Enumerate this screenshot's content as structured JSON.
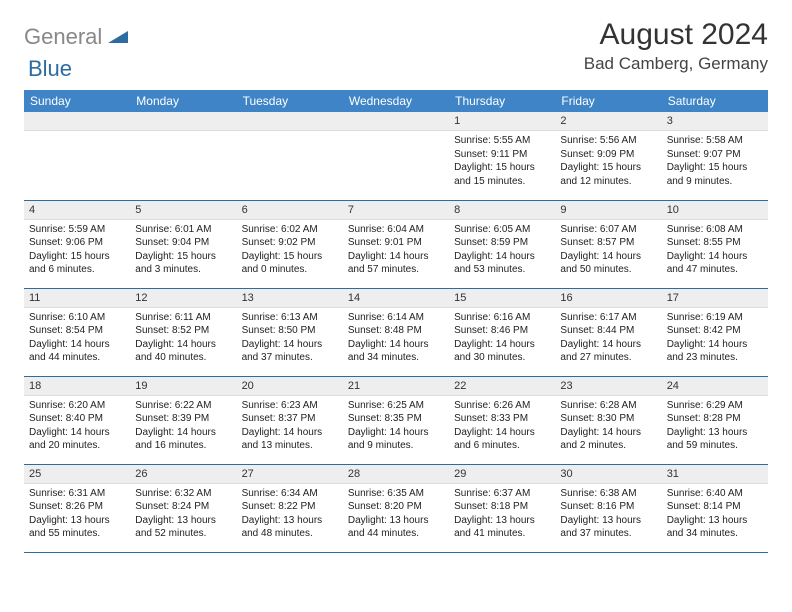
{
  "logo": {
    "gray": "General",
    "blue": "Blue"
  },
  "title": "August 2024",
  "location": "Bad Camberg, Germany",
  "colors": {
    "header_bg": "#3e84c6",
    "header_text": "#ffffff",
    "row_border": "#2d6ca2",
    "daynum_bg": "#eeeeee",
    "logo_gray": "#888888",
    "logo_blue": "#2d6ca2"
  },
  "weekdays": [
    "Sunday",
    "Monday",
    "Tuesday",
    "Wednesday",
    "Thursday",
    "Friday",
    "Saturday"
  ],
  "weeks": [
    [
      null,
      null,
      null,
      null,
      {
        "n": "1",
        "sr": "Sunrise: 5:55 AM",
        "ss": "Sunset: 9:11 PM",
        "d1": "Daylight: 15 hours",
        "d2": "and 15 minutes."
      },
      {
        "n": "2",
        "sr": "Sunrise: 5:56 AM",
        "ss": "Sunset: 9:09 PM",
        "d1": "Daylight: 15 hours",
        "d2": "and 12 minutes."
      },
      {
        "n": "3",
        "sr": "Sunrise: 5:58 AM",
        "ss": "Sunset: 9:07 PM",
        "d1": "Daylight: 15 hours",
        "d2": "and 9 minutes."
      }
    ],
    [
      {
        "n": "4",
        "sr": "Sunrise: 5:59 AM",
        "ss": "Sunset: 9:06 PM",
        "d1": "Daylight: 15 hours",
        "d2": "and 6 minutes."
      },
      {
        "n": "5",
        "sr": "Sunrise: 6:01 AM",
        "ss": "Sunset: 9:04 PM",
        "d1": "Daylight: 15 hours",
        "d2": "and 3 minutes."
      },
      {
        "n": "6",
        "sr": "Sunrise: 6:02 AM",
        "ss": "Sunset: 9:02 PM",
        "d1": "Daylight: 15 hours",
        "d2": "and 0 minutes."
      },
      {
        "n": "7",
        "sr": "Sunrise: 6:04 AM",
        "ss": "Sunset: 9:01 PM",
        "d1": "Daylight: 14 hours",
        "d2": "and 57 minutes."
      },
      {
        "n": "8",
        "sr": "Sunrise: 6:05 AM",
        "ss": "Sunset: 8:59 PM",
        "d1": "Daylight: 14 hours",
        "d2": "and 53 minutes."
      },
      {
        "n": "9",
        "sr": "Sunrise: 6:07 AM",
        "ss": "Sunset: 8:57 PM",
        "d1": "Daylight: 14 hours",
        "d2": "and 50 minutes."
      },
      {
        "n": "10",
        "sr": "Sunrise: 6:08 AM",
        "ss": "Sunset: 8:55 PM",
        "d1": "Daylight: 14 hours",
        "d2": "and 47 minutes."
      }
    ],
    [
      {
        "n": "11",
        "sr": "Sunrise: 6:10 AM",
        "ss": "Sunset: 8:54 PM",
        "d1": "Daylight: 14 hours",
        "d2": "and 44 minutes."
      },
      {
        "n": "12",
        "sr": "Sunrise: 6:11 AM",
        "ss": "Sunset: 8:52 PM",
        "d1": "Daylight: 14 hours",
        "d2": "and 40 minutes."
      },
      {
        "n": "13",
        "sr": "Sunrise: 6:13 AM",
        "ss": "Sunset: 8:50 PM",
        "d1": "Daylight: 14 hours",
        "d2": "and 37 minutes."
      },
      {
        "n": "14",
        "sr": "Sunrise: 6:14 AM",
        "ss": "Sunset: 8:48 PM",
        "d1": "Daylight: 14 hours",
        "d2": "and 34 minutes."
      },
      {
        "n": "15",
        "sr": "Sunrise: 6:16 AM",
        "ss": "Sunset: 8:46 PM",
        "d1": "Daylight: 14 hours",
        "d2": "and 30 minutes."
      },
      {
        "n": "16",
        "sr": "Sunrise: 6:17 AM",
        "ss": "Sunset: 8:44 PM",
        "d1": "Daylight: 14 hours",
        "d2": "and 27 minutes."
      },
      {
        "n": "17",
        "sr": "Sunrise: 6:19 AM",
        "ss": "Sunset: 8:42 PM",
        "d1": "Daylight: 14 hours",
        "d2": "and 23 minutes."
      }
    ],
    [
      {
        "n": "18",
        "sr": "Sunrise: 6:20 AM",
        "ss": "Sunset: 8:40 PM",
        "d1": "Daylight: 14 hours",
        "d2": "and 20 minutes."
      },
      {
        "n": "19",
        "sr": "Sunrise: 6:22 AM",
        "ss": "Sunset: 8:39 PM",
        "d1": "Daylight: 14 hours",
        "d2": "and 16 minutes."
      },
      {
        "n": "20",
        "sr": "Sunrise: 6:23 AM",
        "ss": "Sunset: 8:37 PM",
        "d1": "Daylight: 14 hours",
        "d2": "and 13 minutes."
      },
      {
        "n": "21",
        "sr": "Sunrise: 6:25 AM",
        "ss": "Sunset: 8:35 PM",
        "d1": "Daylight: 14 hours",
        "d2": "and 9 minutes."
      },
      {
        "n": "22",
        "sr": "Sunrise: 6:26 AM",
        "ss": "Sunset: 8:33 PM",
        "d1": "Daylight: 14 hours",
        "d2": "and 6 minutes."
      },
      {
        "n": "23",
        "sr": "Sunrise: 6:28 AM",
        "ss": "Sunset: 8:30 PM",
        "d1": "Daylight: 14 hours",
        "d2": "and 2 minutes."
      },
      {
        "n": "24",
        "sr": "Sunrise: 6:29 AM",
        "ss": "Sunset: 8:28 PM",
        "d1": "Daylight: 13 hours",
        "d2": "and 59 minutes."
      }
    ],
    [
      {
        "n": "25",
        "sr": "Sunrise: 6:31 AM",
        "ss": "Sunset: 8:26 PM",
        "d1": "Daylight: 13 hours",
        "d2": "and 55 minutes."
      },
      {
        "n": "26",
        "sr": "Sunrise: 6:32 AM",
        "ss": "Sunset: 8:24 PM",
        "d1": "Daylight: 13 hours",
        "d2": "and 52 minutes."
      },
      {
        "n": "27",
        "sr": "Sunrise: 6:34 AM",
        "ss": "Sunset: 8:22 PM",
        "d1": "Daylight: 13 hours",
        "d2": "and 48 minutes."
      },
      {
        "n": "28",
        "sr": "Sunrise: 6:35 AM",
        "ss": "Sunset: 8:20 PM",
        "d1": "Daylight: 13 hours",
        "d2": "and 44 minutes."
      },
      {
        "n": "29",
        "sr": "Sunrise: 6:37 AM",
        "ss": "Sunset: 8:18 PM",
        "d1": "Daylight: 13 hours",
        "d2": "and 41 minutes."
      },
      {
        "n": "30",
        "sr": "Sunrise: 6:38 AM",
        "ss": "Sunset: 8:16 PM",
        "d1": "Daylight: 13 hours",
        "d2": "and 37 minutes."
      },
      {
        "n": "31",
        "sr": "Sunrise: 6:40 AM",
        "ss": "Sunset: 8:14 PM",
        "d1": "Daylight: 13 hours",
        "d2": "and 34 minutes."
      }
    ]
  ]
}
